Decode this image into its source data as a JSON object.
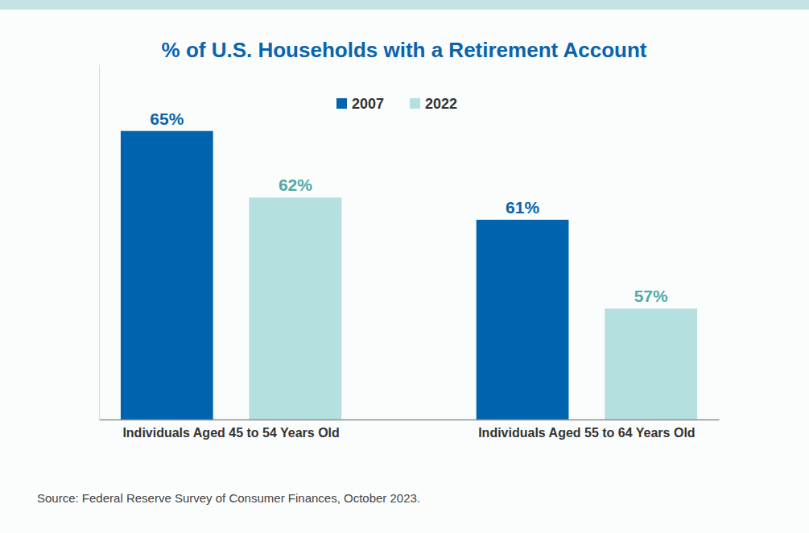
{
  "chart_data": {
    "type": "bar",
    "title": "% of U.S. Households with a Retirement Account",
    "categories": [
      "Individuals Aged 45 to 54 Years Old",
      "Individuals Aged 55 to 64 Years Old"
    ],
    "series": [
      {
        "name": "2007",
        "color": "#0063ad",
        "values": [
          65,
          61
        ],
        "value_labels": [
          "65%",
          "61%"
        ]
      },
      {
        "name": "2022",
        "color": "#b4e0df",
        "values": [
          62,
          57
        ],
        "value_labels": [
          "62%",
          "57%"
        ]
      }
    ],
    "ylim": [
      52,
      68
    ],
    "tick_labels": "x",
    "data_labels": true,
    "legend": "top",
    "grid": false,
    "source": "Source: Federal Reserve Survey of Consumer Finances, October 2023."
  }
}
